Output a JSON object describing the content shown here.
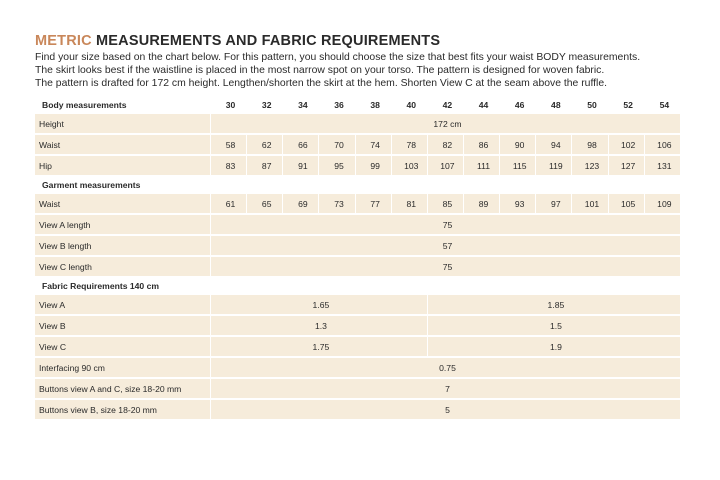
{
  "title": {
    "accent": "METRIC",
    "rest": "MEASUREMENTS AND FABRIC REQUIREMENTS"
  },
  "intro": [
    "Find your size based on the chart below. For this pattern, you should choose the size that best fits your waist BODY measurements.",
    "The skirt looks best if the waistline is placed in the most narrow spot on your torso. The pattern is designed for woven fabric.",
    "The pattern is drafted for 172 cm height. Lengthen/shorten the skirt at the hem. Shorten View C at the seam above the ruffle."
  ],
  "table": {
    "sizes": [
      30,
      32,
      34,
      36,
      38,
      40,
      42,
      44,
      46,
      48,
      50,
      52,
      54
    ],
    "sections": [
      {
        "heading": "Body measurements",
        "rows": [
          {
            "label": "Height",
            "span": "172 cm"
          },
          {
            "label": "Waist",
            "values": [
              58,
              62,
              66,
              70,
              74,
              78,
              82,
              86,
              90,
              94,
              98,
              102,
              106
            ]
          },
          {
            "label": "Hip",
            "values": [
              83,
              87,
              91,
              95,
              99,
              103,
              107,
              111,
              115,
              119,
              123,
              127,
              131
            ]
          }
        ]
      },
      {
        "heading": "Garment measurements",
        "rows": [
          {
            "label": "Waist",
            "values": [
              61,
              65,
              69,
              73,
              77,
              81,
              85,
              89,
              93,
              97,
              101,
              105,
              109
            ]
          },
          {
            "label": "View A length",
            "span": 75
          },
          {
            "label": "View B length",
            "span": 57
          },
          {
            "label": "View C length",
            "span": 75
          }
        ]
      },
      {
        "heading": "Fabric Requirements 140 cm",
        "rows": [
          {
            "label": "View A",
            "split": [
              1.65,
              1.85
            ]
          },
          {
            "label": "View B",
            "split": [
              1.3,
              1.5
            ]
          },
          {
            "label": "View C",
            "split": [
              1.75,
              1.9
            ]
          },
          {
            "label": "Interfacing 90 cm",
            "span": 0.75
          },
          {
            "label": "Buttons view A and C, size 18-20 mm",
            "span": 7
          },
          {
            "label": "Buttons view B, size 18-20 mm",
            "span": 5
          }
        ]
      }
    ]
  }
}
